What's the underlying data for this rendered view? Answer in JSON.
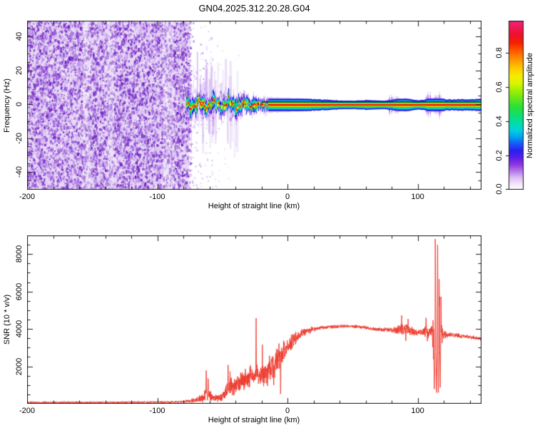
{
  "title": "GN04.2025.312.20.28.G04",
  "chart_data": [
    {
      "type": "heatmap",
      "title": "GN04.2025.312.20.28.G04",
      "xlabel": "Height of straight line (km)",
      "ylabel": "Frequency (Hz)",
      "xlim": [
        -200,
        149
      ],
      "ylim": [
        -50.5,
        49.3
      ],
      "x_ticks": [
        {
          "v": -200,
          "label": "-200"
        },
        {
          "v": -100,
          "label": "-100"
        },
        {
          "v": 0,
          "label": "0"
        },
        {
          "v": 100,
          "label": "100"
        }
      ],
      "x_minor_step": 20,
      "y_ticks": [
        {
          "v": 40,
          "label": "40"
        },
        {
          "v": 20,
          "label": "20"
        },
        {
          "v": 0,
          "label": "0"
        },
        {
          "v": -20,
          "label": "-20"
        },
        {
          "v": -40,
          "label": "-40"
        }
      ],
      "y_minor_step": 5,
      "colorbar": {
        "label": "Normalized spectral amplitude",
        "ticks": [
          {
            "v": 0,
            "label": "0.0"
          },
          {
            "v": 0.2,
            "label": "0.2"
          },
          {
            "v": 0.4,
            "label": "0.4"
          },
          {
            "v": 0.6,
            "label": "0.6"
          },
          {
            "v": 0.8,
            "label": "0.8"
          }
        ],
        "max": 0.99,
        "gradient_stops": [
          [
            0,
            "#ffffff"
          ],
          [
            0.03,
            "#f4e9fc"
          ],
          [
            0.07,
            "#dcc0f4"
          ],
          [
            0.11,
            "#b478ea"
          ],
          [
            0.15,
            "#8f35e0"
          ],
          [
            0.19,
            "#5b1fe8"
          ],
          [
            0.23,
            "#2a20f0"
          ],
          [
            0.27,
            "#1b55f8"
          ],
          [
            0.31,
            "#00a0f0"
          ],
          [
            0.35,
            "#00cfe0"
          ],
          [
            0.39,
            "#00ddb0"
          ],
          [
            0.44,
            "#0fdf70"
          ],
          [
            0.49,
            "#2ae03a"
          ],
          [
            0.54,
            "#66e81a"
          ],
          [
            0.59,
            "#a5ef00"
          ],
          [
            0.63,
            "#d8f500"
          ],
          [
            0.67,
            "#f5ee00"
          ],
          [
            0.72,
            "#ffc800"
          ],
          [
            0.77,
            "#ff9400"
          ],
          [
            0.82,
            "#ff5a00"
          ],
          [
            0.87,
            "#f52000"
          ],
          [
            0.92,
            "#ee1030"
          ],
          [
            0.97,
            "#ee1e5e"
          ],
          [
            1,
            "#f0257a"
          ]
        ]
      },
      "noise_region": {
        "x_range": [
          -200,
          -76
        ],
        "base_color": "#e8d9f6",
        "speckle_colors": [
          "#f2e8fb",
          "#e2cdf6",
          "#d2b4f0",
          "#c096ea",
          "#aa74e2",
          "#9150d8",
          "#7a30cc",
          "#6618b8"
        ],
        "light_columns_km": [
          -157,
          -138,
          -96
        ]
      },
      "signal_band": {
        "center_hz": -0.45,
        "wiggly_range": [
          -78,
          -15
        ],
        "straight_range": [
          -15,
          149
        ],
        "halo_halfwidth_hz": [
          [
            -15,
            4.6
          ],
          [
            -8,
            4.3
          ],
          [
            0,
            4.1
          ],
          [
            8,
            3.8
          ],
          [
            16,
            3.4
          ],
          [
            24,
            3.0
          ],
          [
            32,
            2.6
          ],
          [
            40,
            2.2
          ],
          [
            48,
            2.1
          ],
          [
            56,
            2.3
          ],
          [
            62,
            2.6
          ],
          [
            68,
            2.3
          ],
          [
            74,
            2.1
          ],
          [
            79,
            2.6
          ],
          [
            83,
            3.2
          ],
          [
            87,
            3.6
          ],
          [
            91,
            3.8
          ],
          [
            94,
            3.3
          ],
          [
            97,
            2.6
          ],
          [
            101,
            2.4
          ],
          [
            105,
            3.0
          ],
          [
            109,
            3.7
          ],
          [
            112,
            4.2
          ],
          [
            115,
            4.6
          ],
          [
            118,
            4.0
          ],
          [
            121,
            3.1
          ],
          [
            126,
            2.9
          ],
          [
            132,
            3.1
          ],
          [
            140,
            3.0
          ],
          [
            145,
            3.2
          ],
          [
            149,
            3.4
          ]
        ],
        "layer_colors": {
          "halo": "rgba(203,156,240,0.55)",
          "purple": "#a85ae8",
          "blue": "#2a18e8",
          "cyan": "#00cdea",
          "green": "#17df3f",
          "yellow": "#edf50c",
          "orange": "#ff9500",
          "red": "#f01208"
        },
        "overlay_line": {
          "color": "#000000",
          "hz": 1.3,
          "from_km": -20
        }
      },
      "disturbances": [
        [
          59,
          65,
          0.3
        ],
        [
          77,
          86.5,
          0.75
        ],
        [
          105.5,
          118,
          1.0
        ]
      ]
    },
    {
      "type": "line",
      "xlabel": "Height of straight line (km)",
      "ylabel": "SNR (10 * v/v)",
      "xlim": [
        -200,
        149
      ],
      "ylim": [
        0,
        9000
      ],
      "x_ticks": [
        {
          "v": -200,
          "label": "-200"
        },
        {
          "v": -100,
          "label": "-100"
        },
        {
          "v": 0,
          "label": "0"
        },
        {
          "v": 100,
          "label": "100"
        }
      ],
      "x_minor_step": 20,
      "y_ticks": [
        {
          "v": 2000,
          "label": "2000"
        },
        {
          "v": 4000,
          "label": "4000"
        },
        {
          "v": 6000,
          "label": "6000"
        },
        {
          "v": 8000,
          "label": "8000"
        }
      ],
      "y_minor_step": 500,
      "line_color": "#ee3a2e",
      "envelope_anchors": [
        [
          -200,
          75,
          55
        ],
        [
          -150,
          78,
          55
        ],
        [
          -120,
          80,
          58
        ],
        [
          -100,
          85,
          60
        ],
        [
          -90,
          90,
          65
        ],
        [
          -84,
          100,
          75
        ],
        [
          -79,
          115,
          85
        ],
        [
          -75,
          140,
          110
        ],
        [
          -71,
          180,
          150
        ],
        [
          -68,
          240,
          200
        ],
        [
          -65,
          330,
          280
        ],
        [
          -63,
          520,
          450
        ],
        [
          -61,
          620,
          560
        ],
        [
          -59,
          380,
          330
        ],
        [
          -57,
          300,
          250
        ],
        [
          -54,
          270,
          220
        ],
        [
          -51,
          330,
          280
        ],
        [
          -48,
          520,
          420
        ],
        [
          -46,
          750,
          550
        ],
        [
          -44,
          880,
          620
        ],
        [
          -42,
          950,
          640
        ],
        [
          -40,
          1020,
          660
        ],
        [
          -37,
          1120,
          690
        ],
        [
          -34,
          1220,
          720
        ],
        [
          -31,
          1300,
          740
        ],
        [
          -28,
          1420,
          790
        ],
        [
          -26,
          1350,
          780
        ],
        [
          -24,
          1500,
          840
        ],
        [
          -22,
          1450,
          800
        ],
        [
          -20,
          1520,
          800
        ],
        [
          -18,
          1600,
          820
        ],
        [
          -16,
          1700,
          840
        ],
        [
          -14,
          1800,
          860
        ],
        [
          -12,
          1950,
          880
        ],
        [
          -10,
          2100,
          860
        ],
        [
          -8,
          2250,
          840
        ],
        [
          -6,
          2450,
          800
        ],
        [
          -4,
          2650,
          760
        ],
        [
          -2,
          2850,
          700
        ],
        [
          0,
          3050,
          620
        ],
        [
          2,
          3250,
          540
        ],
        [
          4,
          3400,
          470
        ],
        [
          6,
          3520,
          410
        ],
        [
          9,
          3650,
          340
        ],
        [
          12,
          3780,
          280
        ],
        [
          15,
          3880,
          230
        ],
        [
          18,
          3950,
          185
        ],
        [
          22,
          4010,
          150
        ],
        [
          26,
          4060,
          130
        ],
        [
          30,
          4090,
          120
        ],
        [
          35,
          4120,
          115
        ],
        [
          40,
          4140,
          110
        ],
        [
          45,
          4150,
          110
        ],
        [
          50,
          4140,
          110
        ],
        [
          55,
          4110,
          115
        ],
        [
          60,
          4070,
          120
        ],
        [
          65,
          4020,
          120
        ],
        [
          70,
          3980,
          120
        ],
        [
          75,
          3950,
          125
        ],
        [
          79,
          3945,
          140
        ],
        [
          82,
          3950,
          190
        ],
        [
          85,
          3930,
          300
        ],
        [
          88,
          3980,
          380
        ],
        [
          90,
          3920,
          330
        ],
        [
          92,
          4050,
          430
        ],
        [
          94,
          3900,
          470
        ],
        [
          96,
          3860,
          290
        ],
        [
          98,
          3820,
          190
        ],
        [
          100,
          3810,
          160
        ],
        [
          102,
          3820,
          160
        ],
        [
          104,
          3800,
          220
        ],
        [
          106,
          3870,
          480
        ],
        [
          108,
          3750,
          450
        ],
        [
          110,
          3820,
          380
        ],
        [
          111,
          3700,
          600
        ],
        [
          112,
          3600,
          1400
        ],
        [
          113,
          4300,
          2800
        ],
        [
          114,
          4200,
          3600
        ],
        [
          115,
          4600,
          3900
        ],
        [
          116,
          4300,
          3400
        ],
        [
          117,
          4100,
          2700
        ],
        [
          118,
          3900,
          1500
        ],
        [
          119,
          3750,
          650
        ],
        [
          120,
          3720,
          280
        ],
        [
          122,
          3700,
          170
        ],
        [
          126,
          3680,
          140
        ],
        [
          130,
          3650,
          130
        ],
        [
          135,
          3610,
          120
        ],
        [
          140,
          3560,
          115
        ],
        [
          145,
          3510,
          112
        ],
        [
          149,
          3470,
          110
        ]
      ],
      "spikes": [
        [
          -62.4,
          1980,
          0.5
        ],
        [
          -60.9,
          1520,
          0.4
        ],
        [
          -45.6,
          2080,
          0.5
        ],
        [
          -44.1,
          1750,
          0.4
        ],
        [
          -24.1,
          4660,
          0.45
        ],
        [
          -19.3,
          3180,
          0.4
        ],
        [
          -6.6,
          3620,
          0.4
        ],
        [
          87.7,
          4720,
          0.4
        ],
        [
          92.6,
          4880,
          0.45
        ],
        [
          106.4,
          5320,
          0.5
        ],
        [
          113.5,
          9400,
          0.7
        ],
        [
          115.3,
          9400,
          0.65
        ],
        [
          116.4,
          7750,
          0.5
        ],
        [
          117.9,
          6600,
          0.45
        ]
      ],
      "dips": [
        [
          -5.3,
          380,
          0.4
        ],
        [
          -10.6,
          520,
          0.35
        ],
        [
          90.9,
          3060,
          0.4
        ],
        [
          112.8,
          640,
          0.5
        ],
        [
          114.5,
          330,
          0.5
        ],
        [
          115.9,
          480,
          0.45
        ],
        [
          117.3,
          820,
          0.4
        ],
        [
          113.1,
          900,
          0.3
        ]
      ]
    }
  ]
}
